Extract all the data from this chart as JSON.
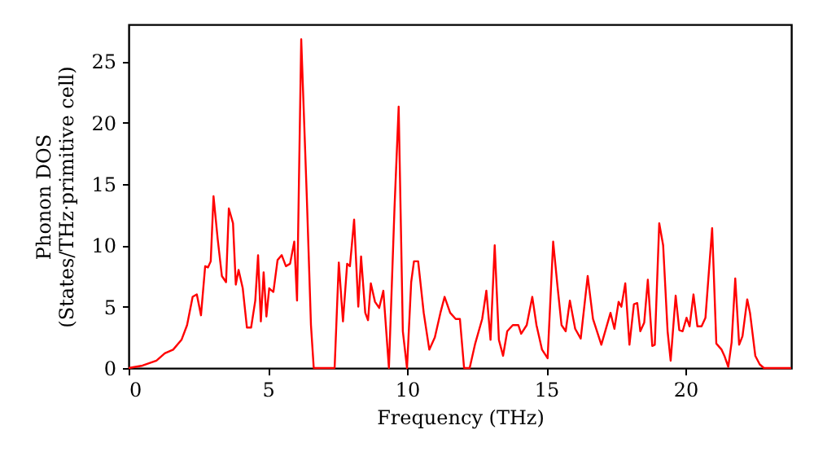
{
  "chart_data": {
    "type": "line",
    "xlabel": "Frequency (THz)",
    "ylabel": "Phonon DOS\n(States/THz·primitive cell)",
    "xlim": [
      0,
      23.8
    ],
    "ylim": [
      0,
      28
    ],
    "xticks": [
      0,
      5,
      10,
      15,
      20
    ],
    "yticks": [
      0,
      5,
      10,
      15,
      20,
      25
    ],
    "grid": false,
    "series": [
      {
        "color": "#ff0000",
        "x": [
          0,
          0.5,
          1,
          1.3,
          1.6,
          1.9,
          2.1,
          2.3,
          2.45,
          2.6,
          2.75,
          2.85,
          2.95,
          3.05,
          3.2,
          3.35,
          3.5,
          3.6,
          3.75,
          3.85,
          3.95,
          4.1,
          4.25,
          4.4,
          4.55,
          4.65,
          4.75,
          4.85,
          4.95,
          5.05,
          5.2,
          5.35,
          5.5,
          5.65,
          5.8,
          5.95,
          6.05,
          6.2,
          6.4,
          6.55,
          6.65,
          7.4,
          7.55,
          7.7,
          7.85,
          7.95,
          8.1,
          8.25,
          8.35,
          8.5,
          8.6,
          8.7,
          8.85,
          9.0,
          9.15,
          9.35,
          9.55,
          9.7,
          9.85,
          10.0,
          10.15,
          10.25,
          10.4,
          10.6,
          10.8,
          11.0,
          11.2,
          11.35,
          11.55,
          11.75,
          11.9,
          12.05,
          12.25,
          12.45,
          12.7,
          12.85,
          13.0,
          13.15,
          13.3,
          13.45,
          13.6,
          13.8,
          14.0,
          14.1,
          14.3,
          14.5,
          14.65,
          14.85,
          15.05,
          15.25,
          15.4,
          15.55,
          15.7,
          15.85,
          16.04,
          16.24,
          16.49,
          16.68,
          16.98,
          17.31,
          17.45,
          17.6,
          17.7,
          17.84,
          17.99,
          18.15,
          18.27,
          18.38,
          18.52,
          18.65,
          18.81,
          18.9,
          19.06,
          19.2,
          19.36,
          19.47,
          19.65,
          19.78,
          19.9,
          20.04,
          20.15,
          20.29,
          20.43,
          20.58,
          20.72,
          20.96,
          21.11,
          21.3,
          21.4,
          21.54,
          21.66,
          21.79,
          21.93,
          22.05,
          22.22,
          22.32,
          22.51,
          22.67,
          22.82,
          23.8
        ],
        "values": [
          0,
          0.2,
          0.6,
          1.2,
          1.5,
          2.3,
          3.5,
          5.8,
          6.0,
          4.3,
          8.3,
          8.2,
          8.7,
          14.0,
          10.5,
          7.5,
          7.0,
          13.0,
          11.8,
          6.8,
          8.0,
          6.5,
          3.3,
          3.3,
          5.5,
          9.2,
          3.8,
          7.8,
          4.2,
          6.5,
          6.2,
          8.8,
          9.2,
          8.3,
          8.5,
          10.3,
          5.5,
          26.8,
          14,
          3.5,
          0,
          0,
          8.6,
          3.8,
          8.5,
          8.3,
          12.1,
          5.0,
          9.1,
          4.5,
          3.9,
          6.9,
          5.4,
          4.9,
          6.3,
          0,
          13,
          21.3,
          3,
          0,
          7,
          8.7,
          8.7,
          4.5,
          1.5,
          2.5,
          4.5,
          5.8,
          4.5,
          4.0,
          4.0,
          0,
          0,
          2,
          4,
          6.3,
          2.3,
          10,
          2.3,
          1,
          3,
          3.5,
          3.5,
          2.8,
          3.5,
          5.8,
          3.5,
          1.5,
          0.8,
          10.3,
          6.8,
          3.5,
          3.0,
          5.5,
          3.2,
          2.4,
          7.5,
          4.0,
          1.9,
          4.5,
          3.2,
          5.4,
          5.0,
          6.9,
          1.9,
          5.2,
          5.3,
          3.0,
          3.7,
          7.2,
          1.8,
          1.9,
          11.8,
          10.0,
          3.0,
          0.6,
          5.9,
          3.1,
          3.0,
          4.1,
          3.4,
          6.0,
          3.4,
          3.4,
          4.1,
          11.4,
          2.0,
          1.5,
          1.0,
          0.1,
          2.1,
          7.3,
          1.9,
          2.6,
          5.6,
          4.5,
          1.0,
          0.3,
          0,
          0
        ]
      }
    ]
  }
}
